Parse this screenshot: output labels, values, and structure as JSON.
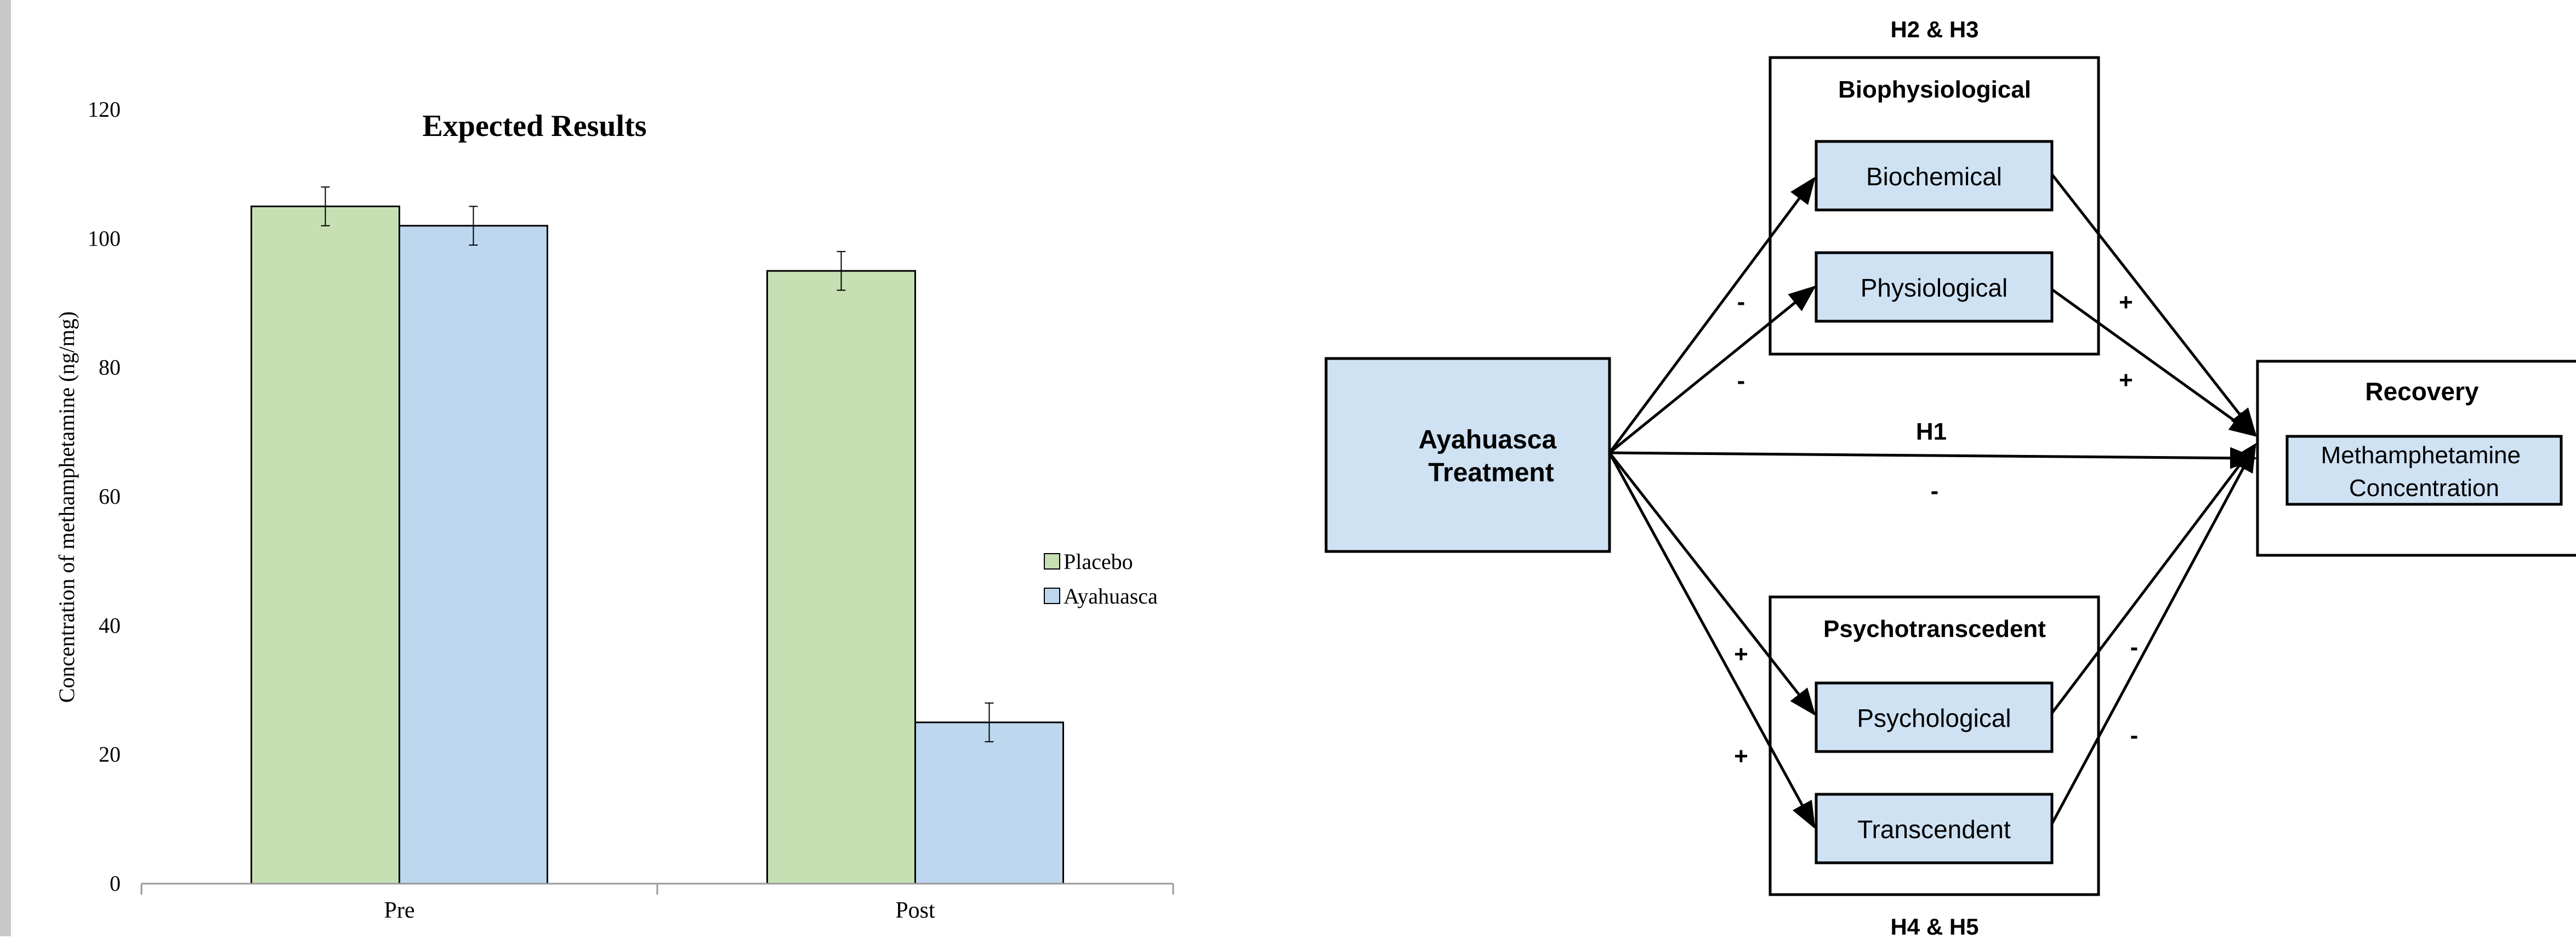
{
  "chart_data": {
    "type": "bar",
    "title": "Expected Results",
    "ylabel": "Concentration of methamphetamine (ng/mg)",
    "xlabel": "",
    "categories": [
      "Pre",
      "Post"
    ],
    "series": [
      {
        "name": "Placebo",
        "values": [
          105,
          95
        ],
        "errors": [
          3,
          3
        ],
        "color": "#c6e0b4"
      },
      {
        "name": "Ayahuasca",
        "values": [
          102,
          25
        ],
        "errors": [
          3,
          3
        ],
        "color": "#bdd7ee"
      }
    ],
    "ylim": [
      0,
      120
    ],
    "yticks": [
      0,
      20,
      40,
      60,
      80,
      100,
      120
    ],
    "grid": false,
    "legend_position": "right"
  },
  "diagram": {
    "box_fill": "#cfe2f3",
    "treatment_label": "Ayahuasca Treatment",
    "treatment_lines": [
      "Ayahuasca",
      "Treatment"
    ],
    "outcome_title": "Recovery",
    "outcome_label": "Methamphetamine Concentration",
    "outcome_lines": [
      "Methamphetamine",
      "Concentration"
    ],
    "top_group": {
      "hypotheses": "H2 & H3",
      "title": "Biophysiological",
      "items": [
        "Biochemical",
        "Physiological"
      ]
    },
    "bottom_group": {
      "hypotheses": "H4 & H5",
      "title": "Psychotranscedent",
      "items": [
        "Psychological",
        "Transcendent"
      ]
    },
    "direct_path": {
      "label": "H1",
      "sign": "-"
    },
    "signs": {
      "to_biochemical": "-",
      "to_physiological": "-",
      "biochemical_out": "+",
      "physiological_out": "+",
      "to_psychological": "+",
      "to_transcendent": "+",
      "psychological_out": "-",
      "transcendent_out": "-"
    }
  }
}
